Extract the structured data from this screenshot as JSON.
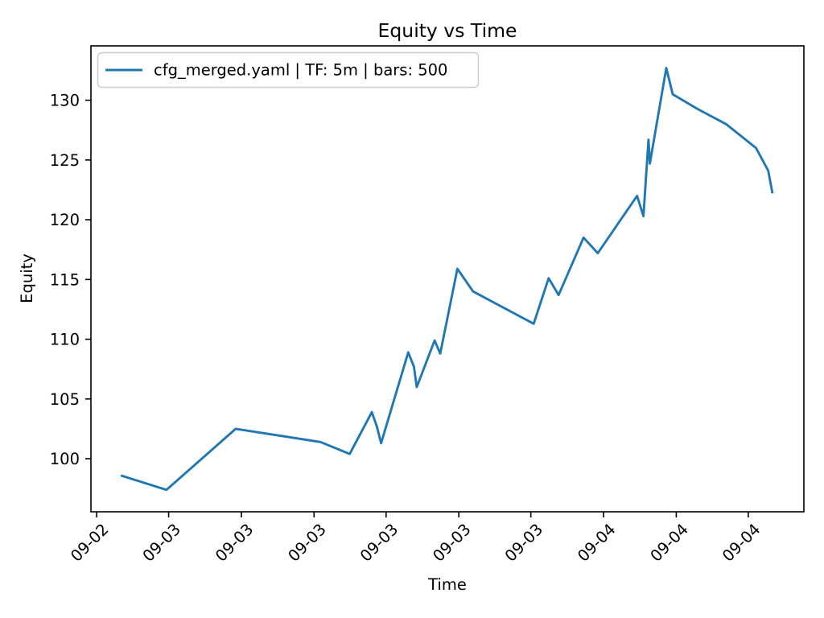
{
  "figure": {
    "colors": {
      "background": "#ffffff",
      "text": "#000000",
      "spines": "#000000",
      "legend_border": "#cccccc",
      "legend_background": "#ffffff"
    }
  },
  "chart_data": {
    "type": "line",
    "title": "Equity vs Time",
    "xlabel": "Time",
    "ylabel": "Equity",
    "grid": false,
    "legend_position": "upper-left",
    "ylim": [
      95.56,
      134.55
    ],
    "y_ticks": [
      100,
      105,
      110,
      115,
      120,
      125,
      130
    ],
    "x_ticks": {
      "positions": [
        0.008,
        0.109,
        0.211,
        0.313,
        0.414,
        0.516,
        0.617,
        0.719,
        0.821,
        0.922
      ],
      "labels": [
        "09-02",
        "09-03",
        "09-03",
        "09-03",
        "09-03",
        "09-03",
        "09-03",
        "09-04",
        "09-04",
        "09-04"
      ]
    },
    "series": [
      {
        "name": "cfg_merged.yaml | TF: 5m | bars: 500",
        "color": "#1f77b4",
        "x_encoding": "fraction_of_time_axis",
        "points": [
          [
            0.042,
            98.6
          ],
          [
            0.106,
            97.4
          ],
          [
            0.203,
            102.5
          ],
          [
            0.322,
            101.4
          ],
          [
            0.363,
            100.4
          ],
          [
            0.394,
            103.9
          ],
          [
            0.401,
            102.7
          ],
          [
            0.407,
            101.3
          ],
          [
            0.445,
            108.9
          ],
          [
            0.453,
            107.7
          ],
          [
            0.457,
            106.0
          ],
          [
            0.482,
            109.9
          ],
          [
            0.49,
            108.8
          ],
          [
            0.514,
            115.9
          ],
          [
            0.536,
            114.0
          ],
          [
            0.621,
            111.3
          ],
          [
            0.642,
            115.1
          ],
          [
            0.656,
            113.7
          ],
          [
            0.691,
            118.5
          ],
          [
            0.711,
            117.2
          ],
          [
            0.766,
            122.0
          ],
          [
            0.775,
            120.3
          ],
          [
            0.782,
            126.7
          ],
          [
            0.784,
            124.7
          ],
          [
            0.807,
            132.7
          ],
          [
            0.816,
            130.5
          ],
          [
            0.85,
            129.3
          ],
          [
            0.891,
            128.0
          ],
          [
            0.933,
            126.0
          ],
          [
            0.95,
            124.1
          ],
          [
            0.956,
            122.2
          ]
        ]
      }
    ]
  }
}
